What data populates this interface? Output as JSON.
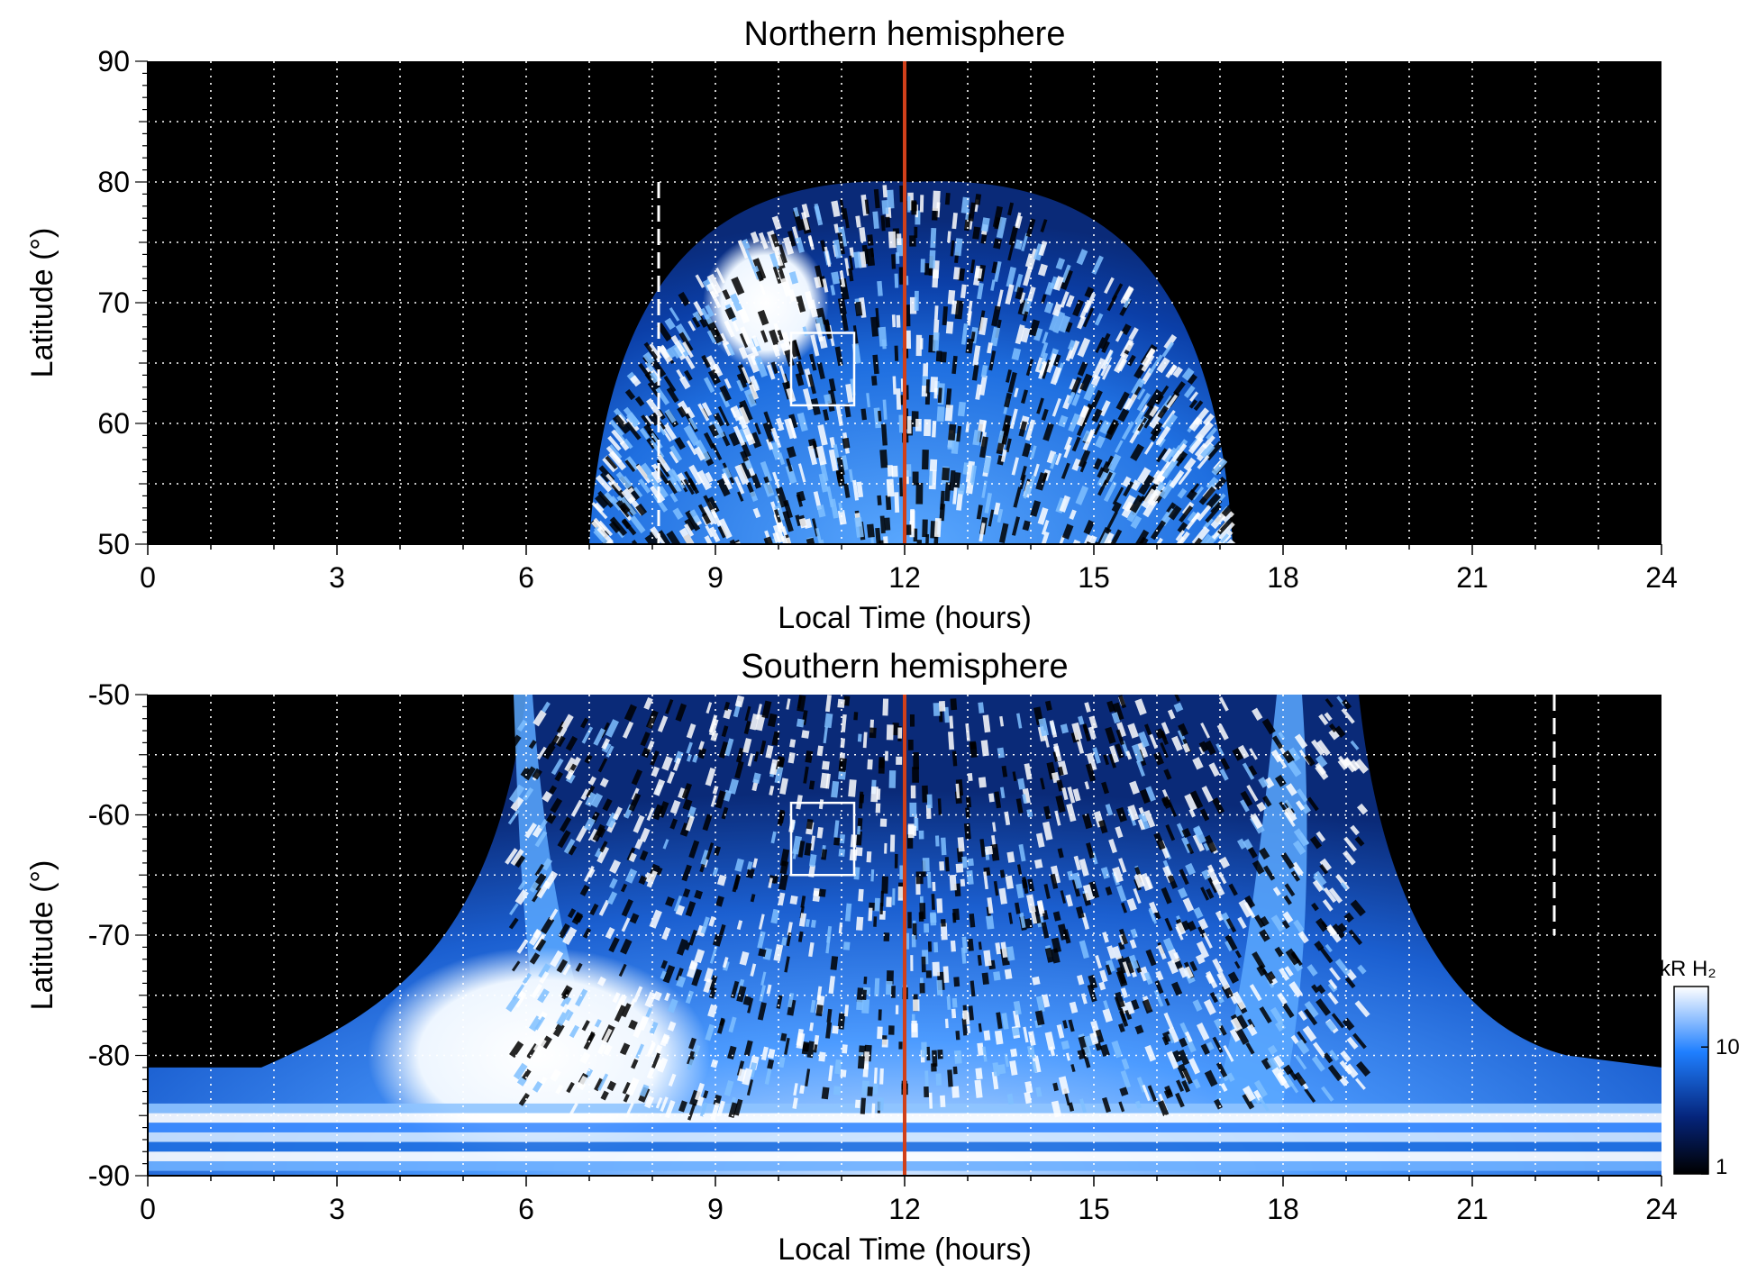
{
  "colors": {
    "background": "#000000",
    "emission_low": "#001a66",
    "emission_mid": "#1f7fff",
    "emission_high": "#ffffff",
    "noon_line": "#d0401a",
    "grid": "#ffffff"
  },
  "chart_data": [
    {
      "type": "heatmap",
      "title": "Northern hemisphere",
      "xlabel": "Local Time (hours)",
      "ylabel": "Latitude (°)",
      "xlim": [
        0,
        24
      ],
      "ylim": [
        50,
        90
      ],
      "xticks": [
        "0",
        "3",
        "6",
        "9",
        "12",
        "15",
        "18",
        "21",
        "24"
      ],
      "yticks": [
        "90",
        "80",
        "70",
        "60",
        "50"
      ],
      "grid": true,
      "noon_line_lt": 12,
      "dashed_line": {
        "lt": 8.1,
        "lat_range": [
          80,
          50
        ]
      },
      "box": {
        "lt": [
          10.2,
          11.2
        ],
        "lat": [
          67.5,
          61.5
        ]
      },
      "emission_region": {
        "lt_span": [
          7.0,
          17.2
        ],
        "lat_top": 80,
        "lat_bottom": 50
      },
      "bright_patch": {
        "lt": 9.8,
        "lat": 70
      }
    },
    {
      "type": "heatmap",
      "title": "Southern hemisphere",
      "xlabel": "Local Time (hours)",
      "ylabel": "Latitude (°)",
      "xlim": [
        0,
        24
      ],
      "ylim": [
        -90,
        -50
      ],
      "xticks": [
        "0",
        "3",
        "6",
        "9",
        "12",
        "15",
        "18",
        "21",
        "24"
      ],
      "yticks": [
        "-50",
        "-60",
        "-70",
        "-80",
        "-90"
      ],
      "grid": true,
      "noon_line_lt": 12,
      "dashed_line": {
        "lt": 22.3,
        "lat_range": [
          -50,
          -70
        ]
      },
      "box": {
        "lt": [
          10.2,
          11.2
        ],
        "lat": [
          -59,
          -65
        ]
      },
      "bright_patch": {
        "lt": 6.2,
        "lat": -80
      }
    }
  ],
  "colorbar": {
    "label": "kR H₂",
    "ticks": [
      "1",
      "10"
    ],
    "scale": "log"
  }
}
